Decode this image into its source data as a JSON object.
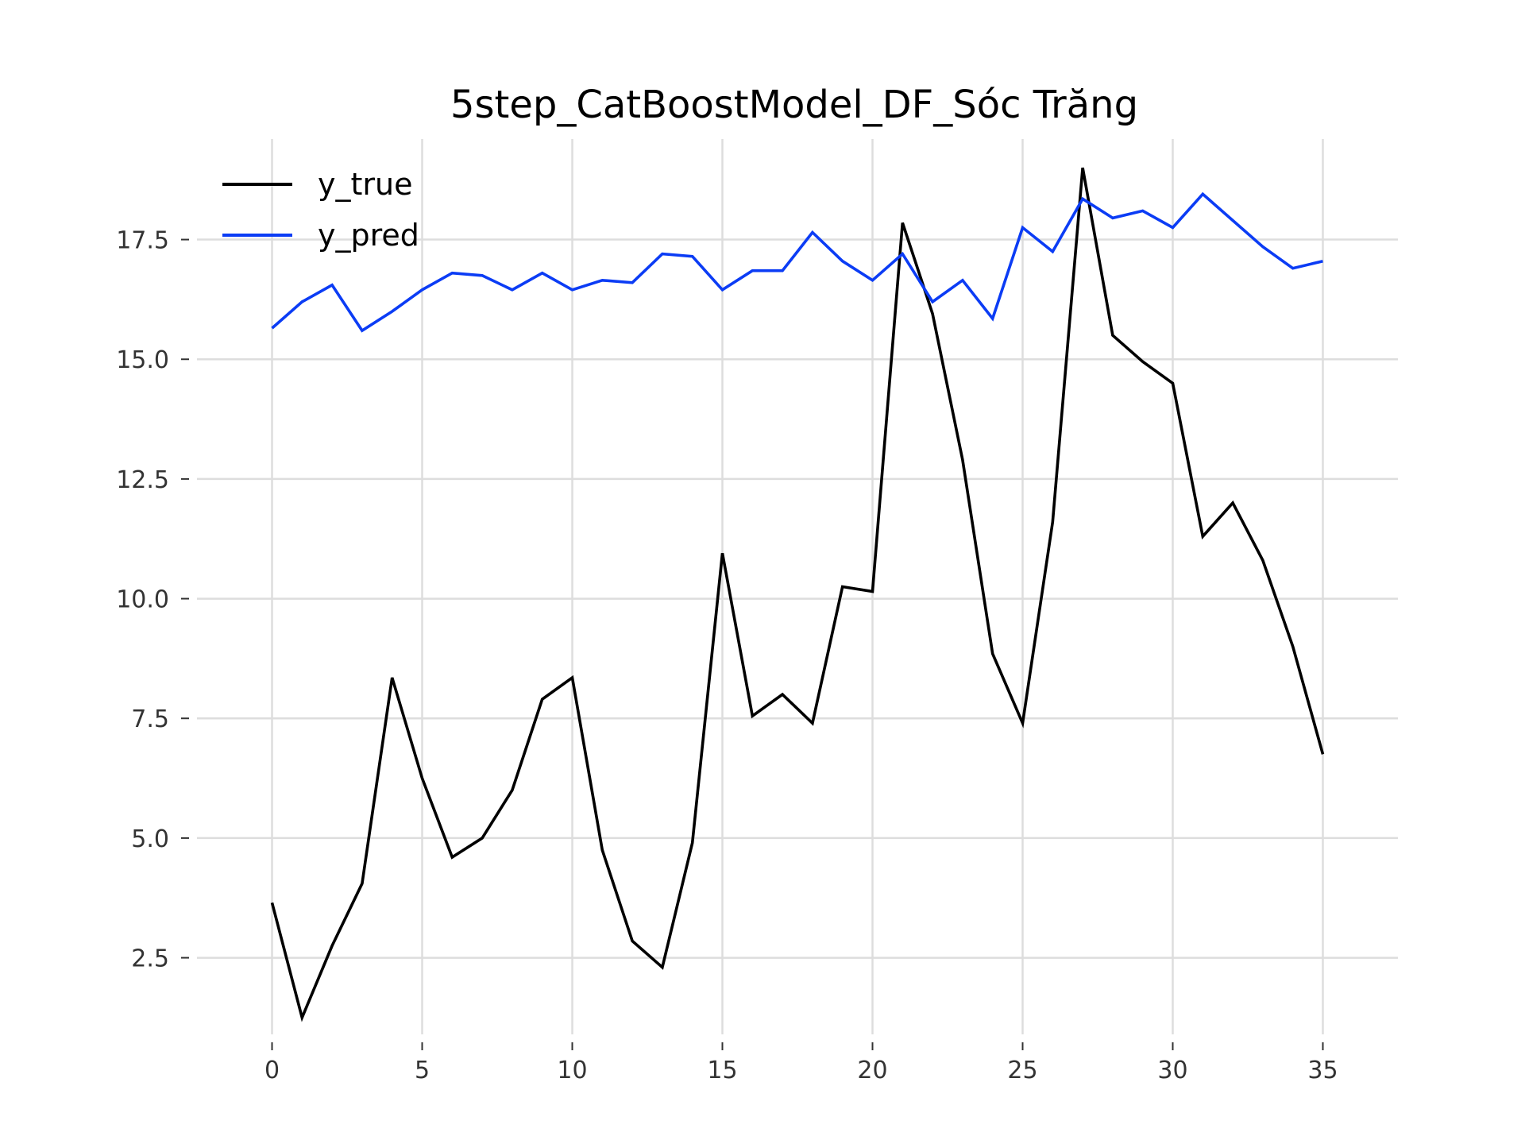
{
  "chart_data": {
    "type": "line",
    "title": "5step_CatBoostModel_DF_Sóc Trăng",
    "xlabel": "",
    "ylabel": "",
    "xlim": [
      -2.5,
      37.5
    ],
    "ylim": [
      0.9,
      19.6
    ],
    "xticks": [
      0,
      5,
      10,
      15,
      20,
      25,
      30,
      35
    ],
    "yticks": [
      2.5,
      5.0,
      7.5,
      10.0,
      12.5,
      15.0,
      17.5
    ],
    "xtick_labels": [
      "0",
      "5",
      "10",
      "15",
      "20",
      "25",
      "30",
      "35"
    ],
    "ytick_labels": [
      "2.5",
      "5.0",
      "7.5",
      "10.0",
      "12.5",
      "15.0",
      "17.5"
    ],
    "grid": true,
    "legend_position": "top-left",
    "x": [
      0,
      1,
      2,
      3,
      4,
      5,
      6,
      7,
      8,
      9,
      10,
      11,
      12,
      13,
      14,
      15,
      16,
      17,
      18,
      19,
      20,
      21,
      22,
      23,
      24,
      25,
      26,
      27,
      28,
      29,
      30,
      31,
      32,
      33,
      34,
      35
    ],
    "series": [
      {
        "name": "y_true",
        "color": "#000000",
        "values": [
          3.65,
          1.25,
          2.75,
          4.05,
          8.35,
          6.25,
          4.6,
          5.0,
          6.0,
          7.9,
          8.35,
          4.75,
          2.85,
          2.3,
          4.9,
          10.95,
          7.55,
          8.0,
          7.4,
          10.25,
          10.15,
          17.85,
          15.95,
          12.9,
          8.85,
          7.4,
          11.6,
          19.0,
          15.5,
          14.95,
          14.5,
          11.3,
          12.0,
          10.8,
          9.0,
          6.75
        ]
      },
      {
        "name": "y_pred",
        "color": "#0b3cf5",
        "values": [
          15.65,
          16.2,
          16.55,
          15.6,
          16.0,
          16.45,
          16.8,
          16.75,
          16.45,
          16.8,
          16.45,
          16.65,
          16.6,
          17.2,
          17.15,
          16.45,
          16.85,
          16.85,
          17.65,
          17.05,
          16.65,
          17.2,
          16.2,
          16.65,
          15.85,
          17.75,
          17.25,
          18.35,
          17.95,
          18.1,
          17.75,
          18.45,
          17.9,
          17.35,
          16.9,
          17.05
        ]
      }
    ]
  }
}
